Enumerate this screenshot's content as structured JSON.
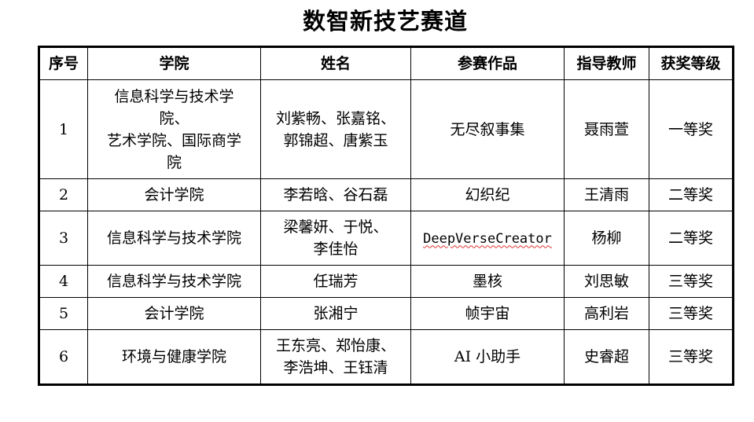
{
  "title": "数智新技艺赛道",
  "table": {
    "headers": [
      "序号",
      "学院",
      "姓名",
      "参赛作品",
      "指导教师",
      "获奖等级"
    ],
    "rows": [
      {
        "no": "1",
        "college": "信息科学与技术学\n院、\n艺术学院、国际商学\n院",
        "names": "刘紫畅、张嘉铭、\n郭锦超、唐紫玉",
        "work": "无尽叙事集",
        "advisor": "聂雨萱",
        "award": "一等奖"
      },
      {
        "no": "2",
        "college": "会计学院",
        "names": "李若晗、谷石磊",
        "work": "幻织纪",
        "advisor": "王清雨",
        "award": "二等奖"
      },
      {
        "no": "3",
        "college": "信息科学与技术学院",
        "names": "梁馨妍、于悦、\n李佳怡",
        "work": "DeepVerseCreator",
        "advisor": "杨柳",
        "award": "二等奖"
      },
      {
        "no": "4",
        "college": "信息科学与技术学院",
        "names": "任瑞芳",
        "work": "墨核",
        "advisor": "刘思敏",
        "award": "三等奖"
      },
      {
        "no": "5",
        "college": "会计学院",
        "names": "张湘宁",
        "work": "帧宇宙",
        "advisor": "高利岩",
        "award": "三等奖"
      },
      {
        "no": "6",
        "college": "环境与健康学院",
        "names": "王东亮、郑怡康、\n李浩坤、王钰清",
        "work": "AI 小助手",
        "advisor": "史睿超",
        "award": "三等奖"
      }
    ]
  }
}
